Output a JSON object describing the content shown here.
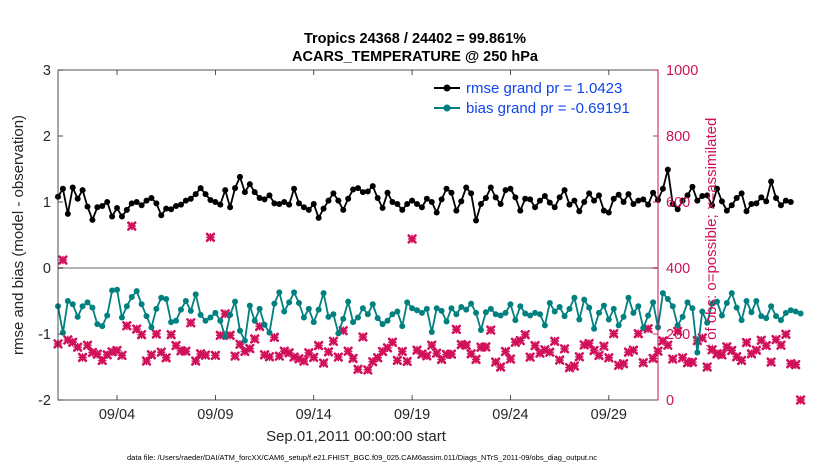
{
  "chart_data": {
    "type": "line",
    "title_line1": "Tropics 24368 / 24402 = 99.861%",
    "title_line2": "ACARS_TEMPERATURE @ 250 hPa",
    "xlabel": "Sep.01,2011 00:00:00 start",
    "ylabel_left": "rmse and bias (model - observation)",
    "ylabel_right": "# of obs: o=possible; ×=assimilated",
    "footer": "data file: /Users/raeder/DAI/ATM_forcXX/CAM6_setup/f.e21.FHIST_BGC.f09_025.CAM6assim.011/Diags_NTrS_2011-09/obs_diag_output.nc",
    "xlim": [
      1,
      31.5
    ],
    "ylim_left": [
      -2,
      3
    ],
    "ylim_right": [
      0,
      1000
    ],
    "x_ticks": [
      {
        "value": 4,
        "label": "09/04"
      },
      {
        "value": 9,
        "label": "09/09"
      },
      {
        "value": 14,
        "label": "09/14"
      },
      {
        "value": 19,
        "label": "09/19"
      },
      {
        "value": 24,
        "label": "09/24"
      },
      {
        "value": 29,
        "label": "09/29"
      }
    ],
    "y_ticks_left": [
      {
        "value": -2,
        "label": "-2"
      },
      {
        "value": -1,
        "label": "-1"
      },
      {
        "value": 0,
        "label": "0"
      },
      {
        "value": 1,
        "label": "1"
      },
      {
        "value": 2,
        "label": "2"
      },
      {
        "value": 3,
        "label": "3"
      }
    ],
    "y_ticks_right": [
      {
        "value": 0,
        "label": "0"
      },
      {
        "value": 200,
        "label": "200"
      },
      {
        "value": 400,
        "label": "400"
      },
      {
        "value": 600,
        "label": "600"
      },
      {
        "value": 800,
        "label": "800"
      },
      {
        "value": 1000,
        "label": "1000"
      }
    ],
    "legend": [
      {
        "label": "rmse grand pr = 1.0423",
        "color": "#000000"
      },
      {
        "label": "bias grand pr = -0.69191",
        "color": "#00807f"
      }
    ],
    "colors": {
      "rmse": "#000000",
      "bias": "#00807f",
      "obs": "#d0105a",
      "zero_line": "#b3b3b3",
      "right_axis": "#d0105a"
    },
    "x_start": 1.0,
    "x_step": 0.25,
    "series": [
      {
        "name": "rmse",
        "axis": "left",
        "values": [
          1.08,
          1.2,
          0.82,
          1.22,
          1.05,
          1.18,
          0.93,
          0.73,
          0.92,
          0.94,
          1.0,
          0.78,
          0.91,
          0.78,
          0.88,
          0.98,
          1.0,
          0.95,
          1.02,
          1.06,
          0.98,
          0.8,
          0.9,
          0.89,
          0.94,
          0.96,
          1.02,
          1.05,
          1.12,
          1.21,
          1.12,
          1.03,
          1.0,
          0.96,
          1.18,
          0.92,
          1.21,
          1.38,
          1.15,
          1.27,
          1.15,
          1.06,
          1.04,
          1.1,
          0.98,
          0.97,
          1.0,
          0.96,
          1.2,
          0.98,
          0.92,
          0.88,
          0.97,
          0.76,
          0.9,
          1.02,
          1.13,
          1.02,
          0.88,
          1.05,
          1.19,
          1.21,
          1.15,
          1.16,
          1.24,
          1.06,
          0.91,
          1.14,
          1.0,
          0.97,
          0.88,
          0.97,
          1.02,
          0.97,
          0.92,
          1.05,
          1.0,
          0.84,
          1.04,
          1.2,
          1.14,
          0.87,
          1.01,
          1.22,
          1.13,
          0.72,
          0.97,
          1.06,
          1.22,
          1.07,
          0.97,
          1.18,
          1.2,
          1.07,
          0.87,
          1.05,
          1.04,
          0.92,
          1.02,
          1.09,
          0.99,
          0.92,
          1.07,
          1.18,
          0.96,
          1.02,
          0.86,
          1.0,
          1.13,
          1.02,
          1.1,
          0.87,
          0.84,
          1.05,
          1.11,
          1.0,
          1.12,
          0.97,
          1.02,
          1.04,
          0.96,
          1.14,
          1.03,
          1.2,
          1.49,
          0.97,
          0.89,
          1.02,
          1.1,
          1.23,
          1.02,
          1.09,
          1.1,
          0.95,
          1.2,
          1.01,
          0.87,
          0.95,
          1.06,
          1.13,
          0.86,
          0.97,
          0.98,
          1.07,
          1.01,
          1.31,
          1.06,
          0.95,
          1.02,
          1.0
        ]
      },
      {
        "name": "bias",
        "axis": "left",
        "values": [
          -0.58,
          -0.98,
          -0.5,
          -0.55,
          -0.74,
          -0.58,
          -0.52,
          -0.6,
          -0.85,
          -0.88,
          -0.72,
          -0.34,
          -0.33,
          -0.75,
          -0.58,
          -0.44,
          -0.35,
          -0.55,
          -0.73,
          -0.9,
          -0.62,
          -0.45,
          -0.47,
          -0.82,
          -0.8,
          -0.63,
          -0.5,
          -0.65,
          -0.4,
          -0.71,
          -0.8,
          -0.75,
          -0.68,
          -0.8,
          -1.04,
          -0.71,
          -0.51,
          -0.95,
          -1.1,
          -0.57,
          -0.8,
          -0.62,
          -0.86,
          -0.98,
          -0.54,
          -0.37,
          -0.66,
          -0.52,
          -0.37,
          -0.53,
          -0.75,
          -0.62,
          -0.82,
          -0.63,
          -0.38,
          -0.74,
          -0.7,
          -0.99,
          -0.77,
          -0.51,
          -0.82,
          -0.75,
          -0.61,
          -0.7,
          -0.55,
          -0.76,
          -0.85,
          -0.8,
          -0.7,
          -0.66,
          -0.88,
          -0.52,
          -0.61,
          -0.64,
          -0.68,
          -0.62,
          -0.97,
          -0.61,
          -0.65,
          -0.81,
          -0.61,
          -0.7,
          -0.59,
          -0.63,
          -0.54,
          -0.68,
          -0.94,
          -0.67,
          -0.62,
          -0.7,
          -0.72,
          -0.68,
          -0.55,
          -0.79,
          -0.58,
          -0.69,
          -0.72,
          -0.68,
          -0.7,
          -0.87,
          -0.53,
          -0.66,
          -0.59,
          -0.73,
          -0.62,
          -0.45,
          -0.78,
          -0.48,
          -0.6,
          -0.92,
          -0.68,
          -0.57,
          -0.78,
          -0.62,
          -0.87,
          -0.74,
          -0.45,
          -0.68,
          -0.58,
          -0.91,
          -0.72,
          -0.52,
          -0.9,
          -0.38,
          -0.47,
          -0.58,
          -0.87,
          -0.74,
          -0.52,
          -0.61,
          -1.28,
          -0.66,
          -0.83,
          -0.54,
          -0.51,
          -0.72,
          -0.53,
          -0.38,
          -0.6,
          -0.79,
          -0.5,
          -0.67,
          -0.5,
          -0.73,
          -0.76,
          -0.58,
          -0.73,
          -0.79,
          -0.68,
          -0.64,
          -0.66,
          -0.69
        ]
      },
      {
        "name": "obs_assimilated",
        "axis": "right",
        "values": [
          170,
          424,
          182,
          175,
          160,
          129,
          166,
          144,
          139,
          120,
          137,
          146,
          150,
          135,
          225,
          527,
          215,
          198,
          118,
          137,
          200,
          145,
          128,
          198,
          165,
          149,
          148,
          234,
          118,
          140,
          136,
          493,
          135,
          196,
          261,
          196,
          133,
          169,
          147,
          156,
          185,
          223,
          137,
          131,
          190,
          133,
          148,
          143,
          130,
          125,
          118,
          143,
          129,
          165,
          112,
          146,
          178,
          130,
          210,
          148,
          126,
          93,
          191,
          91,
          116,
          128,
          147,
          158,
          175,
          120,
          147,
          117,
          488,
          151,
          139,
          134,
          166,
          142,
          123,
          138,
          139,
          214,
          168,
          166,
          140,
          123,
          160,
          161,
          212,
          115,
          100,
          147,
          124,
          175,
          180,
          198,
          130,
          165,
          142,
          152,
          145,
          178,
          121,
          155,
          98,
          103,
          131,
          167,
          171,
          150,
          135,
          163,
          128,
          201,
          105,
          110,
          145,
          151,
          201,
          113,
          216,
          126,
          148,
          179,
          166,
          124,
          208,
          128,
          113,
          115,
          180,
          188,
          100,
          152,
          140,
          137,
          161,
          150,
          131,
          120,
          174,
          140,
          151,
          181,
          165,
          115,
          183,
          166,
          199,
          110,
          107,
          0
        ]
      }
    ]
  }
}
